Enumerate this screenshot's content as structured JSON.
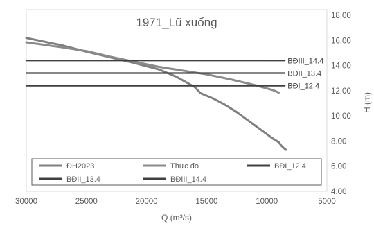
{
  "chart_data": {
    "type": "line",
    "title": "1971_Lũ xuống",
    "xlabel": "Q (m³/s)",
    "ylabel": "H (m)",
    "x_reversed": true,
    "xlim": [
      5000,
      30000
    ],
    "ylim": [
      4.0,
      18.0
    ],
    "x_ticks": [
      30000,
      25000,
      20000,
      15000,
      10000,
      5000
    ],
    "x_tick_labels": [
      "30000",
      "25000",
      "20000",
      "15000",
      "10000",
      "5000"
    ],
    "y_ticks": [
      4,
      6,
      8,
      10,
      12,
      14,
      16,
      18
    ],
    "y_tick_labels": [
      "4.00",
      "6.00",
      "8.00",
      "10.00",
      "12.00",
      "14.00",
      "16.00",
      "18.00"
    ],
    "y_axis_side": "right",
    "grid": false,
    "legend": {
      "position": "bottom-inside",
      "columns": 3
    },
    "series": [
      {
        "name": "ĐH2023",
        "color": "#7f7f7f",
        "x": [
          30000,
          27000,
          25000,
          23000,
          21000,
          19000,
          17500,
          16000,
          15500,
          14500,
          13500,
          12500,
          11500,
          10500,
          9500,
          9000,
          8800,
          8600,
          8400
        ],
        "y": [
          16.2,
          15.6,
          15.1,
          14.65,
          14.2,
          13.7,
          13.1,
          12.3,
          11.8,
          11.4,
          10.9,
          10.3,
          9.6,
          8.9,
          8.2,
          7.9,
          7.65,
          7.45,
          7.3
        ]
      },
      {
        "name": "Thực đo",
        "color": "#8a8a8a",
        "x": [
          30000,
          27000,
          25000,
          23000,
          21000,
          19000,
          17000,
          15000,
          13000,
          11000,
          9500,
          9000
        ],
        "y": [
          15.85,
          15.45,
          15.15,
          14.7,
          14.3,
          13.9,
          13.6,
          13.3,
          12.9,
          12.45,
          12.05,
          11.85
        ]
      },
      {
        "name": "BĐI_12.4",
        "color": "#404040",
        "x": [
          30000,
          8500
        ],
        "y": [
          12.4,
          12.4
        ],
        "end_label": "BĐI_12.4"
      },
      {
        "name": "BĐII_13.4",
        "color": "#404040",
        "x": [
          30000,
          8500
        ],
        "y": [
          13.4,
          13.4
        ],
        "end_label": "BĐII_13.4"
      },
      {
        "name": "BĐIII_14.4",
        "color": "#404040",
        "x": [
          30000,
          8500
        ],
        "y": [
          14.4,
          14.4
        ],
        "end_label": "BĐIII_14.4"
      }
    ]
  }
}
